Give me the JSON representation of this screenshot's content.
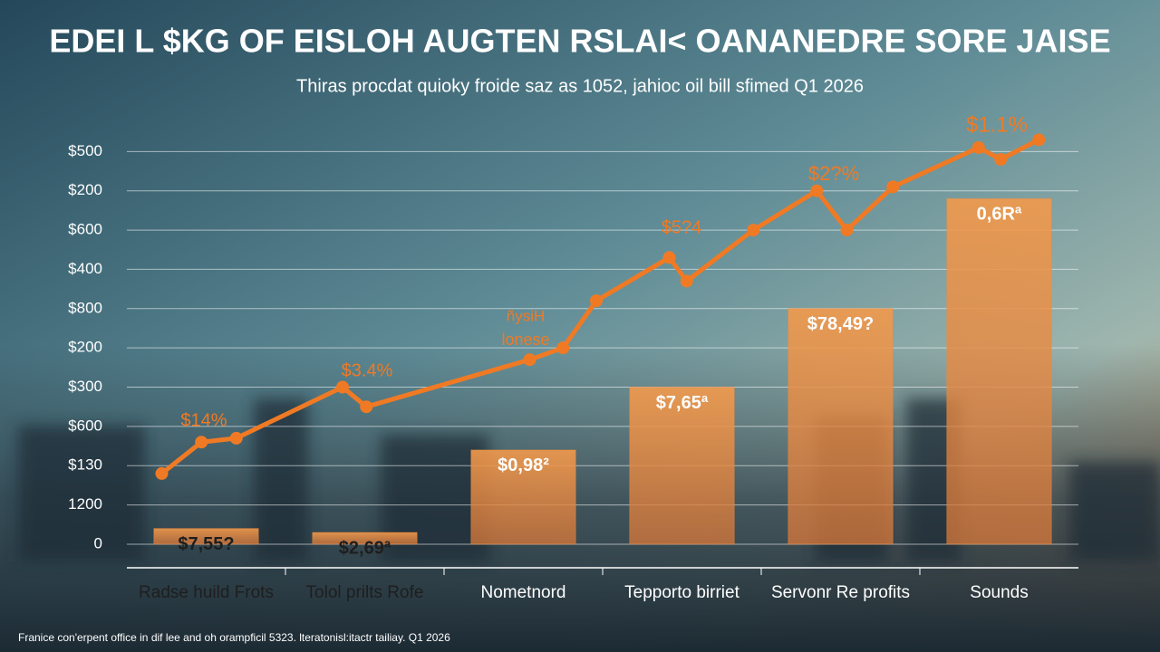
{
  "chart_data": [
    {
      "type": "bar",
      "title": "EDEI L $KG OF EISLOH AUGTEN RSLAI< OANANEDRE SORE JAISE",
      "subtitle": "Thiras procdat quioky froide saz as 1052, jahioc oil bill sfimed Q1 2026",
      "categories": [
        "Radse huild Frots",
        "Tolol prilts Rofe",
        "Nometnord",
        "Tepporto birriet",
        "Servonr Re profits",
        "Sounds"
      ],
      "values": [
        0.4,
        0.3,
        2.4,
        4.0,
        6.0,
        8.8
      ],
      "bar_labels": [
        "$7,55?",
        "$2,69ª",
        "$0,98²",
        "$7,65ª",
        "$78,49?",
        "0,6Rª"
      ],
      "color": "#f28a3a",
      "ylim": [
        -0.6,
        10.4
      ],
      "yticks": [
        0,
        {
          "value": 1,
          "label": "1200"
        },
        {
          "value": 2,
          "label": "$130"
        },
        {
          "value": 3,
          "label": "$600"
        },
        {
          "value": 4,
          "label": "$300"
        },
        {
          "value": 5,
          "label": "$200"
        },
        {
          "value": 6,
          "label": "$800"
        },
        {
          "value": 7,
          "label": "$400"
        },
        {
          "value": 8,
          "label": "$600"
        },
        {
          "value": 9,
          "label": "$200"
        },
        {
          "value": 10,
          "label": "$500"
        }
      ],
      "grid": true,
      "footnote": "Franice con'erpent office in dif lee and oh orampficil 5323. lteratonisl:itactr tailiay. Q1 2026"
    },
    {
      "type": "line",
      "x": [
        -0.28,
        -0.03,
        0.19,
        0.86,
        1.01,
        2.04,
        2.25,
        2.46,
        2.92,
        3.03,
        3.45,
        3.85,
        4.04,
        4.33,
        4.87,
        5.01,
        5.25
      ],
      "values": [
        1.8,
        2.6,
        2.7,
        4.0,
        3.5,
        4.7,
        5.0,
        6.2,
        7.3,
        6.7,
        8.0,
        9.0,
        8.0,
        9.1,
        10.1,
        9.8,
        10.3
      ],
      "color": "#f07a24",
      "xlim": [
        -0.5,
        5.5
      ],
      "ylim": [
        -0.6,
        10.4
      ],
      "annotations": [
        "$14%",
        "$3.4%",
        "ñysiH",
        "lonese",
        "$5?4",
        "$2?%",
        "$1.1%"
      ]
    }
  ]
}
